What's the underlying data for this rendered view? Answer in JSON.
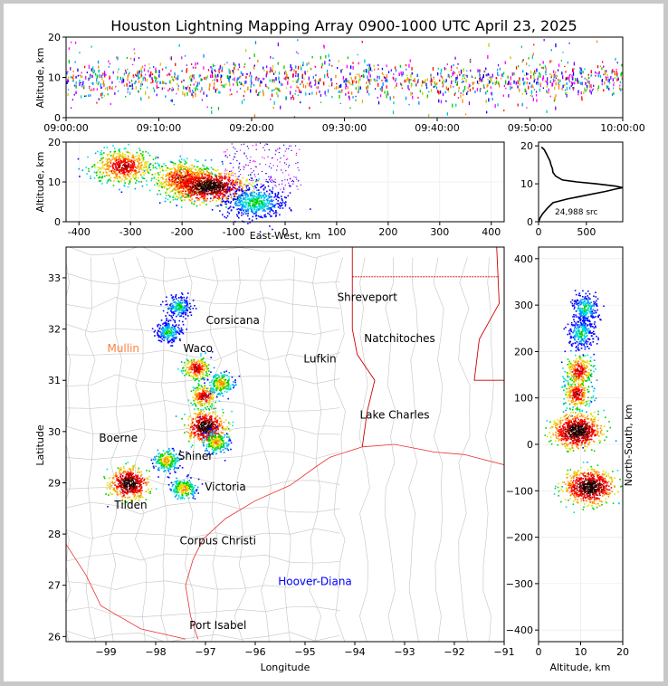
{
  "title": "Houston Lightning Mapping Array 0900-1000 UTC April 23, 2025",
  "chart_data": [
    {
      "id": "altitude_time",
      "type": "scatter",
      "xlabel": "",
      "ylabel": "Altitude, km",
      "x_ticks": [
        "09:00:00",
        "09:10:00",
        "09:20:00",
        "09:30:00",
        "09:40:00",
        "09:50:00",
        "10:00:00"
      ],
      "y_ticks": [
        0,
        10,
        20
      ],
      "xlim_minutes": [
        0,
        60
      ],
      "ylim": [
        0,
        20
      ],
      "grid": true
    },
    {
      "id": "altitude_eastwest",
      "type": "scatter",
      "xlabel": "East-West, km",
      "ylabel": "Altitude, km",
      "x_ticks": [
        -400,
        -300,
        -200,
        -100,
        0,
        100,
        200,
        300,
        400
      ],
      "y_ticks": [
        0,
        10,
        20
      ],
      "xlim": [
        -425,
        425
      ],
      "ylim": [
        0,
        20
      ],
      "grid": true,
      "clusters": [
        {
          "x": -315,
          "alt": 14,
          "density": "high"
        },
        {
          "x": -200,
          "alt": 11,
          "density": "high"
        },
        {
          "x": -150,
          "alt": 9,
          "density": "very-high"
        },
        {
          "x": -60,
          "alt": 5,
          "density": "low"
        }
      ]
    },
    {
      "id": "altitude_histogram",
      "type": "line",
      "annotation": "24,988 src",
      "x_ticks": [
        0,
        500
      ],
      "y_ticks": [
        0,
        10,
        20
      ],
      "xlim": [
        0,
        880
      ],
      "ylim": [
        0,
        21
      ],
      "points": [
        [
          5,
          0.2
        ],
        [
          15,
          1
        ],
        [
          40,
          2
        ],
        [
          90,
          3.5
        ],
        [
          150,
          5
        ],
        [
          300,
          6
        ],
        [
          500,
          7
        ],
        [
          700,
          8
        ],
        [
          800,
          8.6
        ],
        [
          880,
          9
        ],
        [
          800,
          9.4
        ],
        [
          600,
          10
        ],
        [
          400,
          10.5
        ],
        [
          250,
          11
        ],
        [
          180,
          12
        ],
        [
          150,
          13
        ],
        [
          145,
          14
        ],
        [
          130,
          15
        ],
        [
          120,
          16
        ],
        [
          100,
          17
        ],
        [
          80,
          18
        ],
        [
          60,
          19
        ],
        [
          30,
          19.7
        ]
      ]
    },
    {
      "id": "plan_view_map",
      "type": "scatter",
      "xlabel": "Longitude",
      "ylabel": "Latitude",
      "x_ticks": [
        -99,
        -98,
        -97,
        -96,
        -95,
        -94,
        -93,
        -92,
        -91
      ],
      "y_ticks": [
        26,
        27,
        28,
        29,
        30,
        31,
        32,
        33
      ],
      "xlim": [
        -99.8,
        -91
      ],
      "ylim": [
        25.9,
        33.6
      ],
      "cities": [
        {
          "name": "Shreveport",
          "lon": -93.75,
          "lat": 32.55,
          "color": "#000000"
        },
        {
          "name": "Corsicana",
          "lon": -96.45,
          "lat": 32.1,
          "color": "#000000"
        },
        {
          "name": "Natchitoches",
          "lon": -93.1,
          "lat": 31.75,
          "color": "#000000"
        },
        {
          "name": "Mullin",
          "lon": -98.65,
          "lat": 31.55,
          "color": "#ff8040"
        },
        {
          "name": "Waco",
          "lon": -97.15,
          "lat": 31.55,
          "color": "#000000"
        },
        {
          "name": "Lufkin",
          "lon": -94.7,
          "lat": 31.35,
          "color": "#000000"
        },
        {
          "name": "Lake Charles",
          "lon": -93.2,
          "lat": 30.25,
          "color": "#000000"
        },
        {
          "name": "Boerne",
          "lon": -98.75,
          "lat": 29.8,
          "color": "#000000"
        },
        {
          "name": "Shiner",
          "lon": -97.2,
          "lat": 29.45,
          "color": "#000000"
        },
        {
          "name": "Victoria",
          "lon": -96.6,
          "lat": 28.85,
          "color": "#000000"
        },
        {
          "name": "Tilden",
          "lon": -98.5,
          "lat": 28.5,
          "color": "#000000"
        },
        {
          "name": "Corpus Christi",
          "lon": -96.75,
          "lat": 27.8,
          "color": "#000000"
        },
        {
          "name": "Hoover-Diana",
          "lon": -94.8,
          "lat": 27.0,
          "color": "#0000ff"
        },
        {
          "name": "Port Isabel",
          "lon": -96.75,
          "lat": 26.15,
          "color": "#000000"
        }
      ],
      "clusters": [
        {
          "lon": -98.55,
          "lat": 29.0,
          "density": "very-high"
        },
        {
          "lon": -97.45,
          "lat": 28.9,
          "density": "medium"
        },
        {
          "lon": -97.8,
          "lat": 29.45,
          "density": "medium"
        },
        {
          "lon": -97.0,
          "lat": 30.1,
          "density": "very-high"
        },
        {
          "lon": -96.8,
          "lat": 29.8,
          "density": "medium"
        },
        {
          "lon": -97.05,
          "lat": 30.7,
          "density": "high"
        },
        {
          "lon": -96.7,
          "lat": 30.95,
          "density": "medium"
        },
        {
          "lon": -97.2,
          "lat": 31.25,
          "density": "high"
        },
        {
          "lon": -97.55,
          "lat": 32.45,
          "density": "low"
        },
        {
          "lon": -97.75,
          "lat": 31.95,
          "density": "low"
        }
      ]
    },
    {
      "id": "northsouth_altitude",
      "type": "scatter",
      "xlabel": "Altitude, km",
      "ylabel": "North-South, km",
      "x_ticks": [
        0,
        10,
        20
      ],
      "y_ticks": [
        -400,
        -300,
        -200,
        -100,
        0,
        100,
        200,
        300,
        400
      ],
      "xlim": [
        0,
        20
      ],
      "ylim": [
        -425,
        425
      ],
      "grid": true,
      "clusters": [
        {
          "alt": 12,
          "ns": -90,
          "density": "very-high"
        },
        {
          "alt": 9,
          "ns": 30,
          "density": "very-high"
        },
        {
          "alt": 9,
          "ns": 110,
          "density": "high"
        },
        {
          "alt": 9.5,
          "ns": 160,
          "density": "high"
        },
        {
          "alt": 10,
          "ns": 240,
          "density": "low"
        },
        {
          "alt": 11,
          "ns": 295,
          "density": "low"
        }
      ]
    }
  ]
}
